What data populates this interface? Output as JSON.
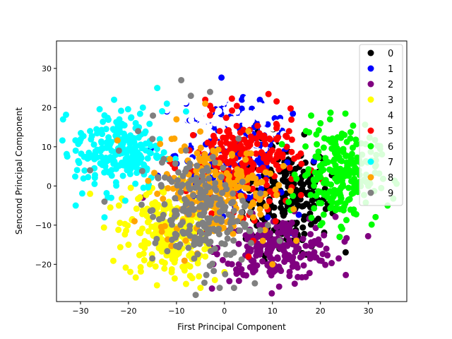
{
  "chart_data": {
    "type": "scatter",
    "title": "",
    "xlabel": "First Principal Component",
    "ylabel": "Sencond Principal Component",
    "xlim": [
      -35,
      38
    ],
    "ylim": [
      -29.5,
      37
    ],
    "xticks": [
      -30,
      -20,
      -10,
      0,
      10,
      20,
      30
    ],
    "yticks": [
      -20,
      -10,
      0,
      10,
      20,
      30
    ],
    "grid": false,
    "legend_position": "top-right",
    "series": [
      {
        "name": "0",
        "color": "#000000",
        "centroid": [
          13,
          -3
        ],
        "spread": [
          4.5,
          7
        ],
        "points": [
          [
            6,
            16
          ],
          [
            7,
            14
          ],
          [
            10,
            10
          ],
          [
            11,
            8
          ],
          [
            14,
            6
          ],
          [
            16,
            2
          ],
          [
            18,
            4
          ],
          [
            12,
            -12
          ],
          [
            10,
            -20
          ],
          [
            14,
            -14
          ]
        ]
      },
      {
        "name": "1",
        "color": "#0000ff",
        "centroid": [
          2,
          8
        ],
        "spread": [
          6,
          6
        ],
        "points": [
          [
            -12,
            19
          ],
          [
            -8,
            21
          ],
          [
            -4,
            18
          ],
          [
            0,
            14
          ],
          [
            6,
            13
          ],
          [
            10,
            12
          ],
          [
            13,
            10
          ],
          [
            5,
            -3
          ],
          [
            9,
            -8
          ],
          [
            14,
            -12
          ]
        ]
      },
      {
        "name": "2",
        "color": "#800080",
        "centroid": [
          11,
          -16
        ],
        "spread": [
          6,
          4
        ],
        "points": [
          [
            18,
            -18
          ],
          [
            20,
            -15
          ],
          [
            3,
            -20
          ],
          [
            6,
            -22
          ],
          [
            9,
            -20
          ],
          [
            15,
            -20
          ],
          [
            -17,
            -3
          ],
          [
            -7,
            -6
          ],
          [
            3,
            -22
          ],
          [
            24,
            -13
          ]
        ]
      },
      {
        "name": "3",
        "color": "#ffff00",
        "centroid": [
          -12,
          -12
        ],
        "spread": [
          4.5,
          6
        ],
        "points": [
          [
            -28,
            -2
          ],
          [
            -22,
            -5
          ],
          [
            -20,
            -15
          ],
          [
            -11,
            -22
          ],
          [
            -8,
            -25
          ],
          [
            -5,
            -26
          ],
          [
            -2,
            -24
          ],
          [
            0,
            -22
          ],
          [
            -14,
            25
          ],
          [
            -4,
            -18
          ]
        ]
      },
      {
        "name": "4",
        "color": "#ffffff",
        "centroid": [
          -2,
          15
        ],
        "spread": [
          8,
          4
        ],
        "points": [
          [
            -8,
            18
          ],
          [
            -5,
            20
          ],
          [
            -2,
            16
          ],
          [
            2,
            14
          ],
          [
            4,
            12
          ],
          [
            8,
            16
          ],
          [
            10,
            8
          ],
          [
            14,
            8
          ]
        ]
      },
      {
        "name": "5",
        "color": "#ff0000",
        "centroid": [
          4,
          6
        ],
        "spread": [
          6,
          6
        ],
        "points": [
          [
            -4,
            22
          ],
          [
            -3,
            18
          ],
          [
            -1,
            14
          ],
          [
            2,
            12
          ],
          [
            5,
            10
          ],
          [
            8,
            4
          ],
          [
            9,
            -6
          ],
          [
            6,
            -14
          ],
          [
            5,
            -18
          ],
          [
            11,
            -2
          ]
        ]
      },
      {
        "name": "6",
        "color": "#00ff00",
        "centroid": [
          24,
          3
        ],
        "spread": [
          4,
          6
        ],
        "points": [
          [
            17,
            14
          ],
          [
            20,
            16
          ],
          [
            22,
            17
          ],
          [
            25,
            13
          ],
          [
            28,
            4
          ],
          [
            30,
            0
          ],
          [
            34,
            -5
          ],
          [
            27,
            -7
          ],
          [
            24,
            -13
          ],
          [
            20,
            -10
          ]
        ]
      },
      {
        "name": "7",
        "color": "#00ffff",
        "centroid": [
          -22,
          9
        ],
        "spread": [
          4.5,
          5
        ],
        "points": [
          [
            -31,
            9
          ],
          [
            -31,
            -5
          ],
          [
            -28,
            14
          ],
          [
            -25,
            18
          ],
          [
            -23,
            22
          ],
          [
            -17,
            20
          ],
          [
            -14,
            25
          ],
          [
            -12,
            21
          ],
          [
            -8,
            19
          ],
          [
            -25,
            -8
          ]
        ]
      },
      {
        "name": "8",
        "color": "#ffa500",
        "centroid": [
          -2,
          -1
        ],
        "spread": [
          6,
          6
        ],
        "points": [
          [
            -10,
            17
          ],
          [
            -11,
            12
          ],
          [
            -9,
            9
          ],
          [
            -12,
            3
          ],
          [
            -14,
            -2
          ],
          [
            6,
            -8
          ],
          [
            8,
            -14
          ],
          [
            10,
            -20
          ],
          [
            5,
            14
          ],
          [
            -4,
            21
          ]
        ]
      },
      {
        "name": "9",
        "color": "#808080",
        "centroid": [
          -5,
          -7
        ],
        "spread": [
          5,
          7
        ],
        "points": [
          [
            -9,
            27
          ],
          [
            -7,
            23
          ],
          [
            -3,
            24
          ],
          [
            -18,
            14
          ],
          [
            -15,
            12
          ],
          [
            -22,
            9
          ],
          [
            -25,
            -4
          ],
          [
            -28,
            4
          ],
          [
            -13,
            6
          ],
          [
            -1,
            -26
          ],
          [
            2,
            -26
          ],
          [
            -2,
            -16
          ]
        ]
      }
    ]
  }
}
